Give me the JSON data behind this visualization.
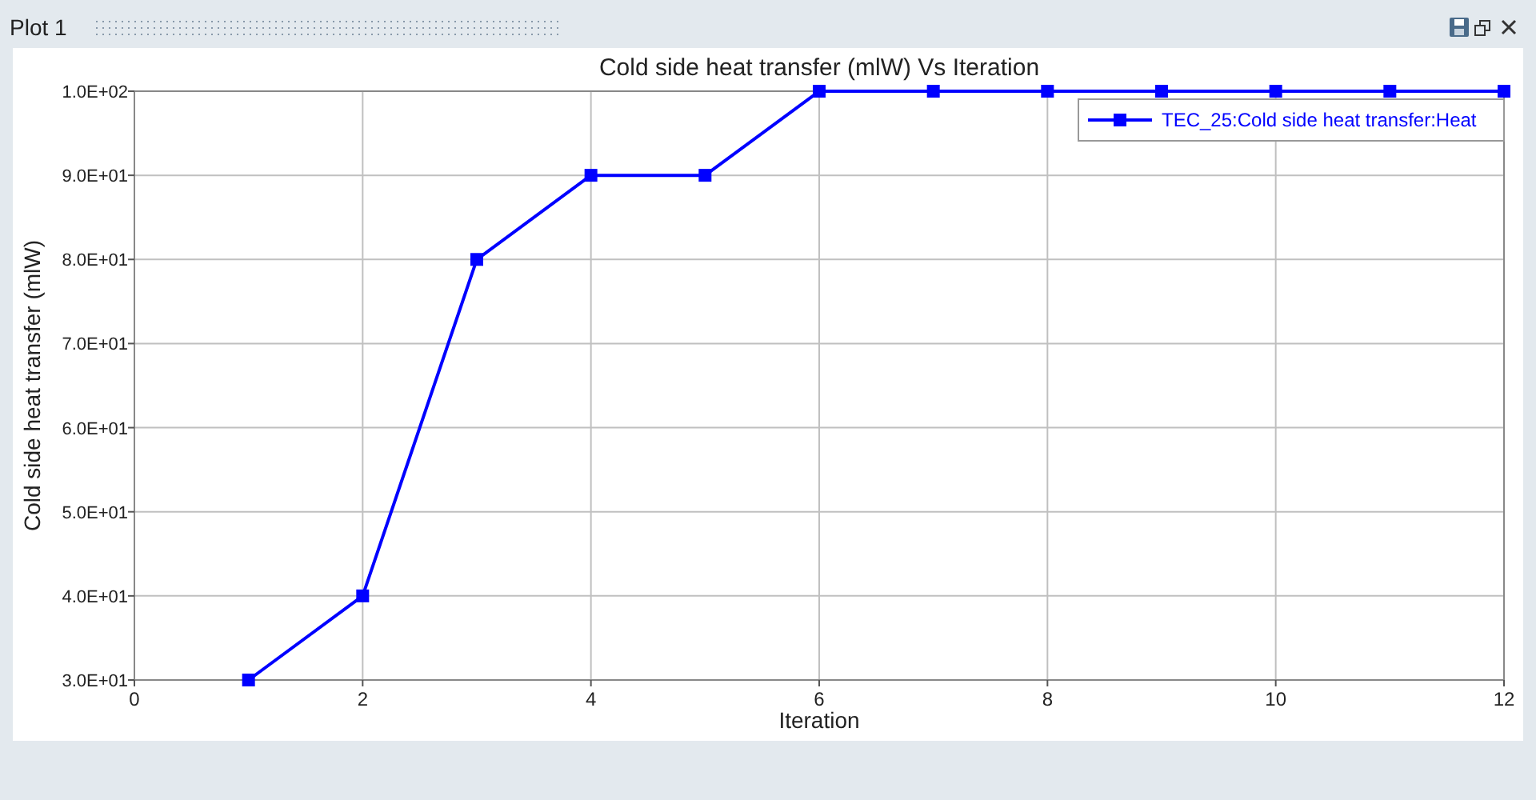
{
  "chart_data": {
    "type": "line",
    "title": "Cold side heat transfer (mlW) Vs Iteration",
    "xlabel": "Iteration",
    "ylabel": "Cold side heat transfer (mlW)",
    "annotations": [
      "Plot 1"
    ],
    "x": [
      1,
      2,
      3,
      4,
      5,
      6,
      7,
      8,
      9,
      10,
      11,
      12
    ],
    "series": [
      {
        "name": "TEC_25:Cold side heat transfer:Heat",
        "color": "#0000ff",
        "values": [
          30,
          40,
          80,
          90,
          90,
          100,
          100,
          100,
          100,
          100,
          100,
          100
        ]
      }
    ],
    "xlim": [
      0,
      12
    ],
    "xticks": [
      0,
      2,
      4,
      6,
      8,
      10,
      12
    ],
    "ylim": [
      30,
      100
    ],
    "yticks": [
      {
        "value": 30,
        "label": "3.0E+01"
      },
      {
        "value": 40,
        "label": "4.0E+01"
      },
      {
        "value": 50,
        "label": "5.0E+01"
      },
      {
        "value": 60,
        "label": "6.0E+01"
      },
      {
        "value": 70,
        "label": "7.0E+01"
      },
      {
        "value": 80,
        "label": "8.0E+01"
      },
      {
        "value": 90,
        "label": "9.0E+01"
      },
      {
        "value": 100,
        "label": "1.0E+02"
      }
    ],
    "grid": true,
    "legend": "top right",
    "marker": "square",
    "line_style": "solid"
  }
}
